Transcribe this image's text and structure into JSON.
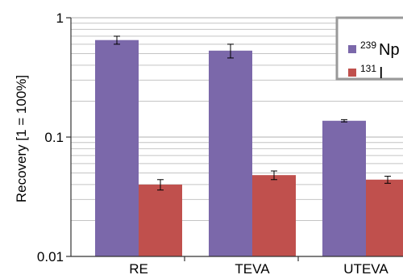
{
  "chart_data": {
    "type": "bar",
    "categories": [
      "RE",
      "TEVA",
      "UTEVA"
    ],
    "ylabel": "Recovery [1 = 100%]",
    "y_scale": "log",
    "ylim": [
      0.01,
      1
    ],
    "y_ticks": [
      {
        "value": 0.01,
        "label": "0.01"
      },
      {
        "value": 0.1,
        "label": "0.1"
      },
      {
        "value": 1,
        "label": "1"
      }
    ],
    "grid": true,
    "legend_position": "top-right",
    "series": [
      {
        "name_mass": "239",
        "name_element": "Np",
        "color": "#7b68aa",
        "values": [
          0.65,
          0.53,
          0.137
        ],
        "errors": [
          0.05,
          0.07,
          0.003
        ]
      },
      {
        "name_mass": "131",
        "name_element": "I",
        "color": "#c0504d",
        "values": [
          0.04,
          0.048,
          0.044
        ],
        "errors": [
          0.004,
          0.004,
          0.003
        ]
      }
    ]
  }
}
